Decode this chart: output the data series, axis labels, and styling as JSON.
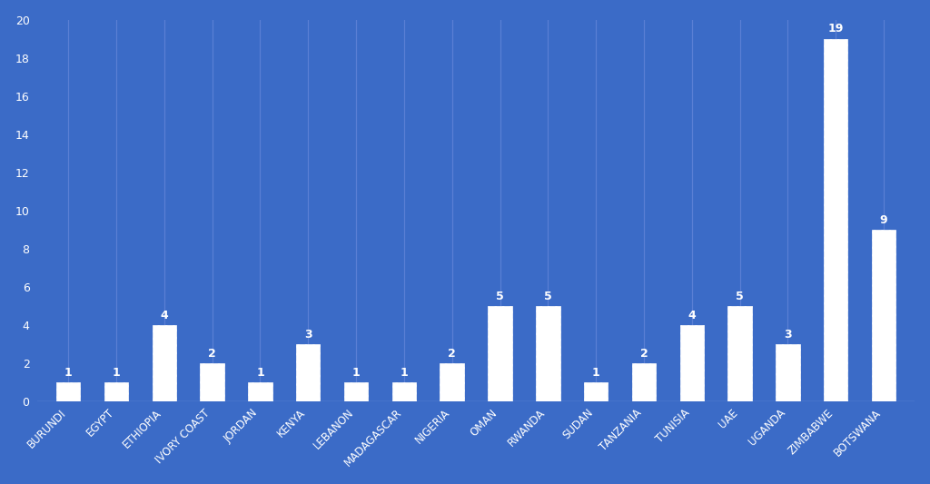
{
  "categories": [
    "BURUNDI",
    "EGYPT",
    "ETHIOPIA",
    "IVORY COAST",
    "JORDAN",
    "KENYA",
    "LEBANON",
    "MADAGASCAR",
    "NIGERIA",
    "OMAN",
    "RWANDA",
    "SUDAN",
    "TANZANIA",
    "TUNISIA",
    "UAE",
    "UGANDA",
    "ZIMBABWE",
    "BOTSWANA"
  ],
  "values": [
    1,
    1,
    4,
    2,
    1,
    3,
    1,
    1,
    2,
    5,
    5,
    1,
    2,
    4,
    5,
    3,
    19,
    9
  ],
  "background_color": "#3B6BC7",
  "bar_face_color": "white",
  "bar_edge_color": "white",
  "hatch_pattern": "////",
  "hatch_color": "#3B6BC7",
  "grid_color": "#5a7fd4",
  "text_color": "white",
  "label_fontsize": 8.5,
  "value_fontsize": 9,
  "tick_fontsize": 9,
  "ylim": [
    0,
    20
  ],
  "yticks": [
    0,
    2,
    4,
    6,
    8,
    10,
    12,
    14,
    16,
    18,
    20
  ],
  "bar_width": 0.5
}
